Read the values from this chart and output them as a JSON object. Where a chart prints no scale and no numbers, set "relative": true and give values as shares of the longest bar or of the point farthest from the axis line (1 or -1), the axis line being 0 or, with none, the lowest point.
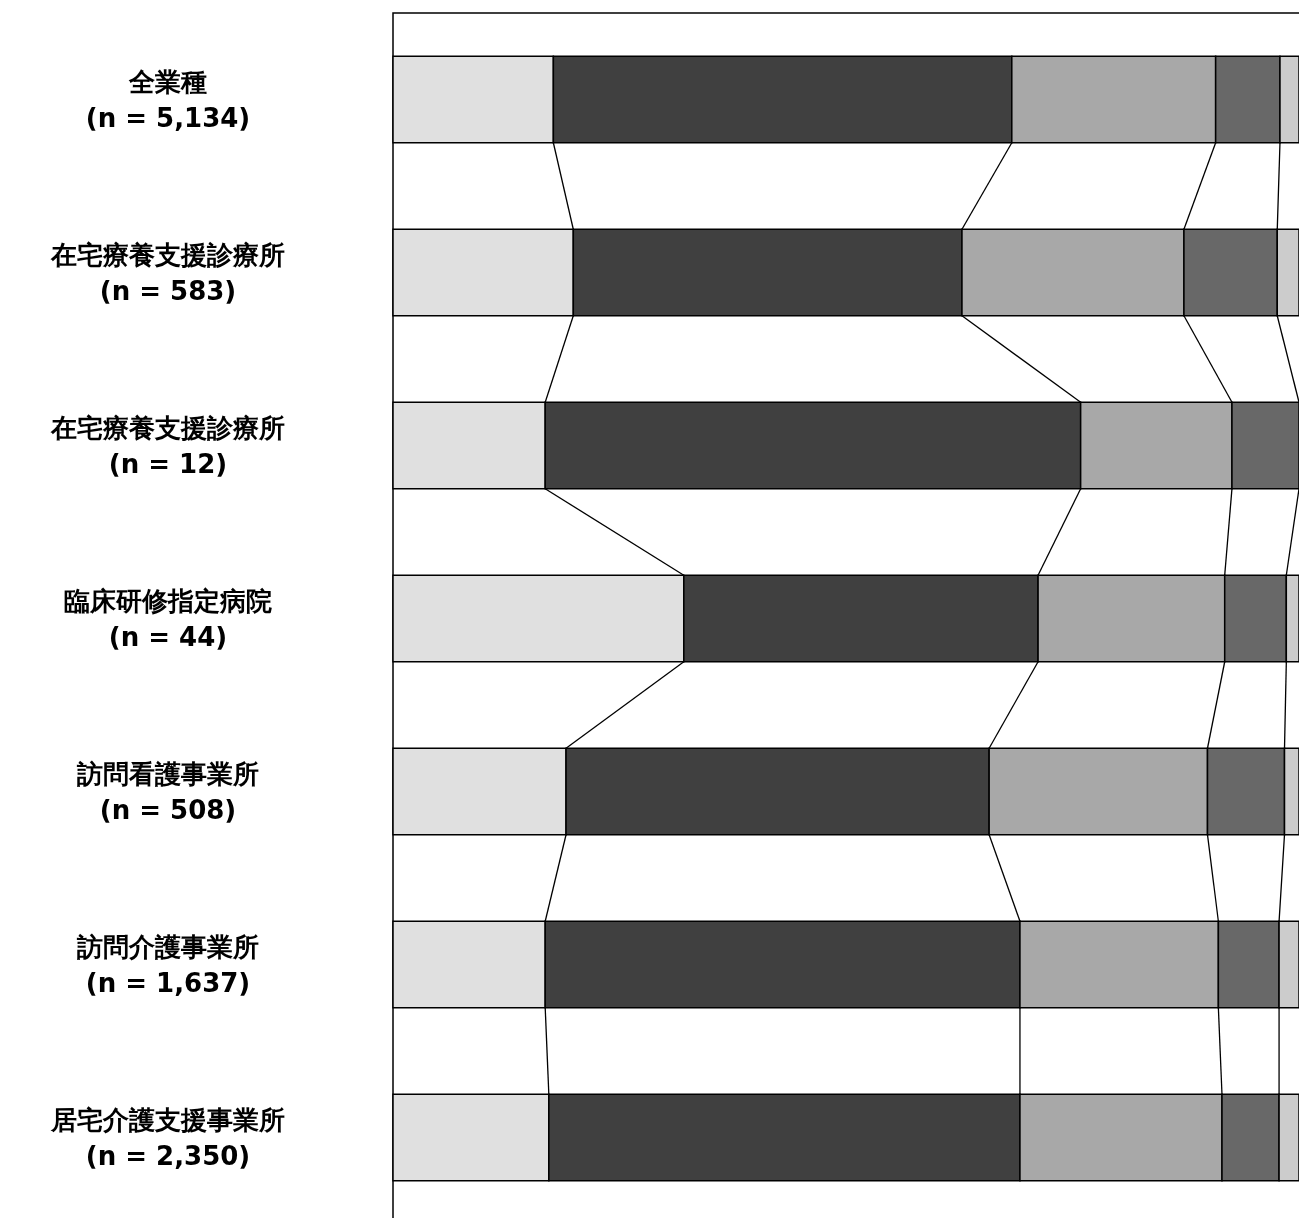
{
  "chart_data": {
    "type": "bar",
    "orientation": "horizontal",
    "stacked": true,
    "relative": true,
    "categories": [
      "全業種\n(n = 5,134)",
      "在宅療養支援診療所\n(n = 583)",
      "在宅療養支援診療所\n(n = 12)",
      "臨床研修指定病院\n(n = 44)",
      "訪問看護事業所\n(n = 508)",
      "訪問介護事業所\n(n = 1,637)",
      "居宅介護支援事業所\n(n = 2,350)"
    ],
    "series": [
      {
        "color": "#e0e0e0",
        "values": [
          0.177,
          0.199,
          0.168,
          0.321,
          0.191,
          0.168,
          0.172
        ]
      },
      {
        "color": "#404040",
        "values": [
          0.506,
          0.429,
          0.591,
          0.391,
          0.467,
          0.524,
          0.52
        ]
      },
      {
        "color": "#a8a8a8",
        "values": [
          0.225,
          0.245,
          0.167,
          0.206,
          0.241,
          0.219,
          0.223
        ]
      },
      {
        "color": "#686868",
        "values": [
          0.071,
          0.103,
          0.074,
          0.068,
          0.085,
          0.067,
          0.063
        ]
      },
      {
        "color": "#cccccc",
        "values": [
          0.021,
          0.024,
          null,
          0.014,
          0.016,
          0.022,
          0.022
        ]
      }
    ]
  }
}
